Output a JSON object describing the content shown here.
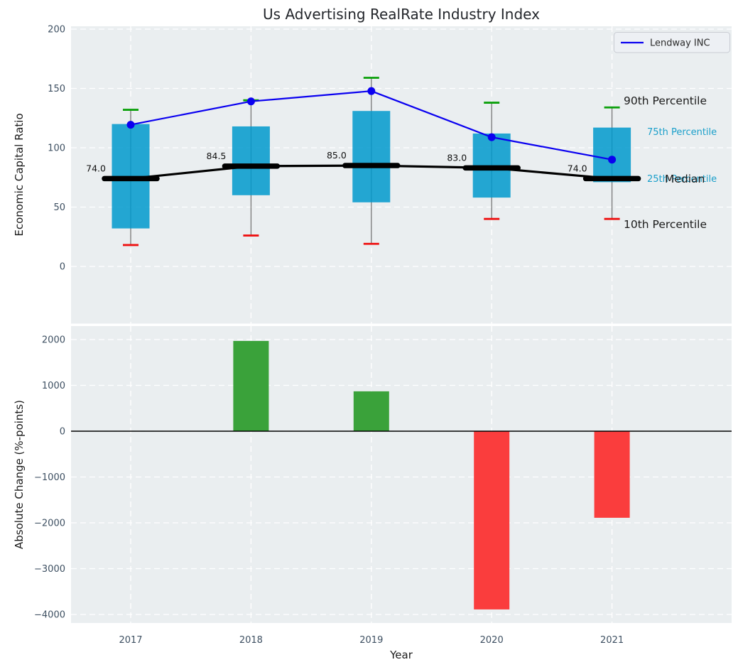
{
  "colors": {
    "axes_background": "#eaeef0",
    "grid": "#ffffff",
    "box_fill": "#0099cc",
    "whisker": "#777777",
    "cap_90th": "#0aa00a",
    "cap_10th": "#ee1111",
    "median": "#000000",
    "lendway_line": "#0a00f0",
    "bar_positive": "#3aa23a",
    "bar_negative": "#fa3d3d",
    "tick_label": "#3e5062",
    "annotation_small": "#1a9fca",
    "annotation_large": "#1a1a1a",
    "legend_bg": "#edf0f4",
    "legend_border": "#c9ccd3"
  },
  "legend": {
    "label": "Lendway INC"
  },
  "chart_data": [
    {
      "type": "box",
      "title": "Us Advertising RealRate Industry Index",
      "ylabel": "Economic Capital Ratio",
      "categories": [
        "2017",
        "2018",
        "2019",
        "2020",
        "2021"
      ],
      "yticks": [
        200,
        150,
        100,
        50,
        0
      ],
      "ylim": [
        -48,
        202
      ],
      "grid": true,
      "legend_position": "upper right",
      "boxes": [
        {
          "year": "2017",
          "p10": 18,
          "p25": 32,
          "median": 74.0,
          "p75": 120,
          "p90": 132
        },
        {
          "year": "2018",
          "p10": 26,
          "p25": 60,
          "median": 84.5,
          "p75": 118,
          "p90": 140
        },
        {
          "year": "2019",
          "p10": 19,
          "p25": 54,
          "median": 85.0,
          "p75": 131,
          "p90": 159
        },
        {
          "year": "2020",
          "p10": 40,
          "p25": 58,
          "median": 83.0,
          "p75": 112,
          "p90": 138
        },
        {
          "year": "2021",
          "p10": 40,
          "p25": 71,
          "median": 74.0,
          "p75": 117,
          "p90": 134
        }
      ],
      "median_labels": [
        "74.0",
        "84.5",
        "85.0",
        "83.0",
        "74.0"
      ],
      "series": [
        {
          "name": "Lendway INC",
          "values": [
            119.4,
            139.1,
            147.8,
            108.9,
            90.0
          ]
        }
      ],
      "annotations": [
        {
          "text": "90th Percentile",
          "size": "large"
        },
        {
          "text": "75th Percentile",
          "size": "small"
        },
        {
          "text": "Median",
          "size": "large"
        },
        {
          "text": "25th Percentile",
          "size": "small"
        },
        {
          "text": "10th Percentile",
          "size": "large"
        }
      ]
    },
    {
      "type": "bar",
      "ylabel": "Absolute Change (%-points)",
      "xlabel": "Year",
      "categories": [
        "2017",
        "2018",
        "2019",
        "2020",
        "2021"
      ],
      "values": [
        null,
        1970,
        870,
        -3890,
        -1890
      ],
      "yticks": [
        2000,
        1000,
        0,
        -1000,
        -2000,
        -3000,
        -4000
      ],
      "ylim": [
        -4230,
        2300
      ],
      "grid": true,
      "zero_line": true
    }
  ]
}
